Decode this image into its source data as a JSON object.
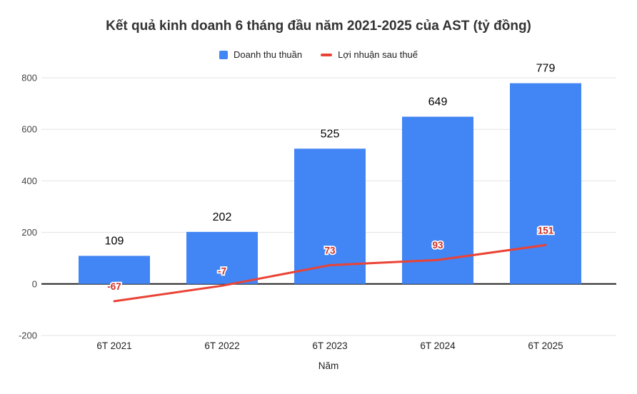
{
  "title": "Kết quả kinh doanh 6 tháng đầu năm 2021-2025 của AST (tỷ đồng)",
  "legend": [
    {
      "label": "Doanh thu thuần",
      "marker": "square",
      "color": "#4285f4"
    },
    {
      "label": "Lợi nhuận sau thuế",
      "marker": "dash",
      "color": "#ea4335"
    }
  ],
  "colors": {
    "bar": "#4285f4",
    "line": "#ea4335",
    "line_label": "#d03027",
    "bar_label": "#000000",
    "gridline": "#e3e3e3",
    "zero_axis": "#222222",
    "tick_label": "#444444",
    "category_label": "#222222",
    "axis_title": "#222222",
    "title": "#333333"
  },
  "chart_data": {
    "type": "bar+line combo",
    "title": "Kết quả kinh doanh 6 tháng đầu năm 2021-2025 của AST (tỷ đồng)",
    "categories": [
      "6T 2021",
      "6T 2022",
      "6T 2023",
      "6T 2024",
      "6T 2025"
    ],
    "series": [
      {
        "name": "Doanh thu thuần",
        "type": "bar",
        "color": "#4285f4",
        "values": [
          109,
          202,
          525,
          649,
          779
        ]
      },
      {
        "name": "Lợi nhuận sau thuế",
        "type": "line",
        "color": "#ea4335",
        "values": [
          -67,
          -7,
          73,
          93,
          151
        ]
      }
    ],
    "xlabel": "Năm",
    "ylabel": "",
    "ylim": [
      -200,
      800
    ],
    "yticks": [
      -200,
      0,
      200,
      400,
      600,
      800
    ],
    "grid": true,
    "legend_position": "top",
    "data_labels_shown": true
  }
}
